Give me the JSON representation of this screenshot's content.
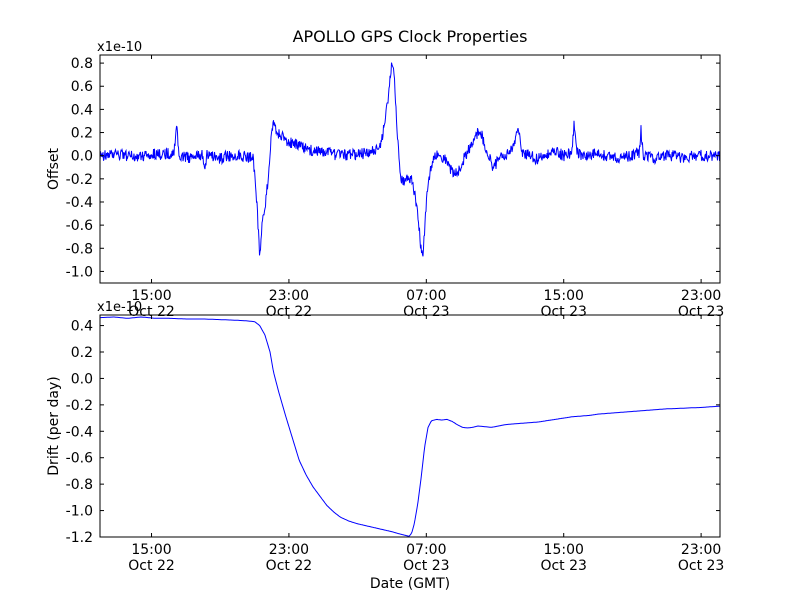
{
  "figure": {
    "background_color": "#ffffff",
    "line_color": "#0000ff",
    "axes_color": "#000000"
  },
  "chart_data": [
    {
      "type": "line",
      "title": "APOLLO GPS Clock Properties",
      "ylabel": "Offset",
      "xlabel": "",
      "offset_text": "x1e-10",
      "x_unit": "hours since Oct 22 12:00 GMT",
      "xlim": [
        0,
        36.1
      ],
      "ylim": [
        -1.1,
        0.87
      ],
      "grid": false,
      "legend": false,
      "x_ticks": {
        "positions": [
          3,
          11,
          19,
          27,
          35
        ],
        "time_labels": [
          "15:00",
          "23:00",
          "07:00",
          "15:00",
          "23:00"
        ],
        "date_labels": [
          "Oct 22",
          "Oct 22",
          "Oct 23",
          "Oct 23",
          "Oct 23"
        ]
      },
      "y_ticks": [
        0.8,
        0.6,
        0.4,
        0.2,
        0.0,
        -0.2,
        -0.4,
        -0.6,
        -0.8,
        -1.0
      ],
      "series": [
        {
          "name": "gps-clock-offset",
          "color": "#0000ff",
          "noise_amplitude": 0.05,
          "keypoints": [
            [
              0,
              0
            ],
            [
              1,
              0.01
            ],
            [
              2,
              -0.01
            ],
            [
              3,
              0.01
            ],
            [
              4.3,
              0.02
            ],
            [
              4.45,
              0.27
            ],
            [
              4.6,
              0
            ],
            [
              5.2,
              -0.02
            ],
            [
              6.0,
              0.01
            ],
            [
              6.1,
              -0.15
            ],
            [
              6.2,
              0
            ],
            [
              7,
              -0.02
            ],
            [
              8,
              0.01
            ],
            [
              8.9,
              -0.02
            ],
            [
              9.05,
              -0.2
            ],
            [
              9.2,
              -0.6
            ],
            [
              9.3,
              -0.9
            ],
            [
              9.42,
              -0.62
            ],
            [
              9.55,
              -0.48
            ],
            [
              9.7,
              -0.33
            ],
            [
              9.85,
              -0.12
            ],
            [
              10.0,
              0.24
            ],
            [
              10.15,
              0.28
            ],
            [
              10.4,
              0.18
            ],
            [
              10.8,
              0.14
            ],
            [
              11.3,
              0.1
            ],
            [
              12,
              0.06
            ],
            [
              13,
              0.03
            ],
            [
              14,
              0
            ],
            [
              15,
              0.01
            ],
            [
              15.8,
              0.03
            ],
            [
              16.3,
              0.08
            ],
            [
              16.6,
              0.28
            ],
            [
              16.85,
              0.6
            ],
            [
              17.0,
              0.82
            ],
            [
              17.12,
              0.72
            ],
            [
              17.25,
              0.35
            ],
            [
              17.4,
              0
            ],
            [
              17.55,
              -0.2
            ],
            [
              17.8,
              -0.23
            ],
            [
              18.0,
              -0.18
            ],
            [
              18.15,
              -0.22
            ],
            [
              18.3,
              -0.3
            ],
            [
              18.5,
              -0.52
            ],
            [
              18.68,
              -0.78
            ],
            [
              18.8,
              -0.9
            ],
            [
              18.95,
              -0.52
            ],
            [
              19.1,
              -0.25
            ],
            [
              19.3,
              -0.07
            ],
            [
              19.6,
              0.02
            ],
            [
              19.9,
              0
            ],
            [
              20.2,
              -0.06
            ],
            [
              20.5,
              -0.13
            ],
            [
              20.8,
              -0.16
            ],
            [
              21.1,
              -0.06
            ],
            [
              21.4,
              0.04
            ],
            [
              21.7,
              0.1
            ],
            [
              22.0,
              0.2
            ],
            [
              22.15,
              0.24
            ],
            [
              22.35,
              0.1
            ],
            [
              22.6,
              0
            ],
            [
              22.9,
              -0.1
            ],
            [
              23.2,
              -0.04
            ],
            [
              23.6,
              0.01
            ],
            [
              24.0,
              0.06
            ],
            [
              24.35,
              0.25
            ],
            [
              24.55,
              0.04
            ],
            [
              25,
              0
            ],
            [
              25.5,
              -0.03
            ],
            [
              26,
              0.01
            ],
            [
              26.5,
              0.04
            ],
            [
              27,
              0
            ],
            [
              27.45,
              0.03
            ],
            [
              27.6,
              0.27
            ],
            [
              27.75,
              0.02
            ],
            [
              28.4,
              0
            ],
            [
              29,
              0.02
            ],
            [
              29.7,
              -0.01
            ],
            [
              30.4,
              -0.02
            ],
            [
              31.1,
              0.01
            ],
            [
              31.4,
              0.03
            ],
            [
              31.5,
              0.22
            ],
            [
              31.65,
              0
            ],
            [
              32.3,
              -0.02
            ],
            [
              33,
              0.01
            ],
            [
              34,
              -0.02
            ],
            [
              35,
              0.01
            ],
            [
              36.1,
              -0.01
            ]
          ]
        }
      ]
    },
    {
      "type": "line",
      "title": "",
      "ylabel": "Drift (per day)",
      "xlabel": "Date (GMT)",
      "offset_text": "x1e-10",
      "x_unit": "hours since Oct 22 12:00 GMT",
      "xlim": [
        0,
        36.1
      ],
      "ylim": [
        -1.2,
        0.48
      ],
      "grid": false,
      "legend": false,
      "x_ticks": {
        "positions": [
          3,
          11,
          19,
          27,
          35
        ],
        "time_labels": [
          "15:00",
          "23:00",
          "07:00",
          "15:00",
          "23:00"
        ],
        "date_labels": [
          "Oct 22",
          "Oct 22",
          "Oct 23",
          "Oct 23",
          "Oct 23"
        ]
      },
      "y_ticks": [
        0.4,
        0.2,
        0.0,
        -0.2,
        -0.4,
        -0.6,
        -0.8,
        -1.0,
        -1.2
      ],
      "series": [
        {
          "name": "gps-clock-drift",
          "color": "#0000ff",
          "noise_amplitude": 0,
          "keypoints": [
            [
              0,
              0.46
            ],
            [
              0.8,
              0.465
            ],
            [
              1.6,
              0.455
            ],
            [
              2.4,
              0.465
            ],
            [
              3.2,
              0.455
            ],
            [
              4,
              0.455
            ],
            [
              5,
              0.45
            ],
            [
              6,
              0.45
            ],
            [
              7,
              0.445
            ],
            [
              8,
              0.44
            ],
            [
              8.6,
              0.435
            ],
            [
              9,
              0.43
            ],
            [
              9.3,
              0.4
            ],
            [
              9.6,
              0.33
            ],
            [
              9.9,
              0.2
            ],
            [
              10.1,
              0.05
            ],
            [
              10.4,
              -0.1
            ],
            [
              10.8,
              -0.28
            ],
            [
              11.2,
              -0.45
            ],
            [
              11.6,
              -0.62
            ],
            [
              12,
              -0.73
            ],
            [
              12.4,
              -0.82
            ],
            [
              12.8,
              -0.89
            ],
            [
              13.2,
              -0.96
            ],
            [
              13.6,
              -1.01
            ],
            [
              14,
              -1.05
            ],
            [
              14.5,
              -1.08
            ],
            [
              15,
              -1.1
            ],
            [
              15.5,
              -1.115
            ],
            [
              16,
              -1.13
            ],
            [
              16.5,
              -1.145
            ],
            [
              17,
              -1.16
            ],
            [
              17.4,
              -1.175
            ],
            [
              17.7,
              -1.185
            ],
            [
              18,
              -1.195
            ],
            [
              18.15,
              -1.17
            ],
            [
              18.3,
              -1.1
            ],
            [
              18.5,
              -0.95
            ],
            [
              18.7,
              -0.75
            ],
            [
              18.9,
              -0.52
            ],
            [
              19.1,
              -0.37
            ],
            [
              19.3,
              -0.32
            ],
            [
              19.6,
              -0.31
            ],
            [
              19.9,
              -0.315
            ],
            [
              20.2,
              -0.31
            ],
            [
              20.5,
              -0.325
            ],
            [
              20.8,
              -0.35
            ],
            [
              21.1,
              -0.37
            ],
            [
              21.4,
              -0.375
            ],
            [
              21.7,
              -0.37
            ],
            [
              22,
              -0.36
            ],
            [
              22.4,
              -0.365
            ],
            [
              22.8,
              -0.37
            ],
            [
              23.2,
              -0.36
            ],
            [
              23.6,
              -0.35
            ],
            [
              24,
              -0.345
            ],
            [
              24.5,
              -0.34
            ],
            [
              25,
              -0.335
            ],
            [
              25.5,
              -0.33
            ],
            [
              26,
              -0.32
            ],
            [
              26.5,
              -0.31
            ],
            [
              27,
              -0.3
            ],
            [
              27.5,
              -0.29
            ],
            [
              28,
              -0.285
            ],
            [
              28.5,
              -0.28
            ],
            [
              29,
              -0.27
            ],
            [
              29.5,
              -0.265
            ],
            [
              30,
              -0.26
            ],
            [
              30.5,
              -0.255
            ],
            [
              31,
              -0.25
            ],
            [
              31.5,
              -0.245
            ],
            [
              32,
              -0.24
            ],
            [
              32.5,
              -0.235
            ],
            [
              33,
              -0.23
            ],
            [
              33.5,
              -0.228
            ],
            [
              34,
              -0.225
            ],
            [
              34.5,
              -0.222
            ],
            [
              35,
              -0.22
            ],
            [
              35.5,
              -0.215
            ],
            [
              36.1,
              -0.21
            ]
          ]
        }
      ]
    }
  ]
}
